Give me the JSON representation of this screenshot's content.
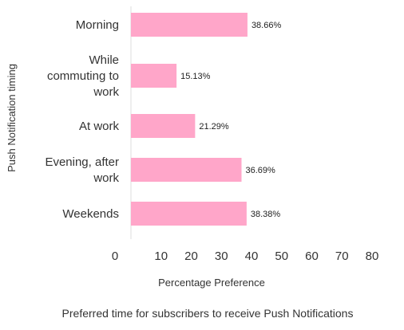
{
  "chart_data": {
    "type": "bar",
    "orientation": "horizontal",
    "title": "Preferred time for subscribers to receive Push Notifications",
    "xlabel": "Percentage Preference",
    "ylabel": "Push Notification timing",
    "categories": [
      [
        "Morning"
      ],
      [
        "While",
        "commuting to",
        "work"
      ],
      [
        "At work"
      ],
      [
        "Evening, after",
        "work"
      ],
      [
        "Weekends"
      ]
    ],
    "values": [
      38.66,
      15.13,
      21.29,
      36.69,
      38.38
    ],
    "value_labels": [
      "38.66%",
      "15.13%",
      "21.29%",
      "36.69%",
      "38.38%"
    ],
    "xlim": [
      0,
      80
    ],
    "xticks": [
      "0",
      "10",
      "20",
      "30",
      "40",
      "50",
      "60",
      "70",
      "80"
    ],
    "grid": false,
    "legend": "none",
    "bar_color": "#ffa6c9",
    "axis_color": "#dddddd"
  }
}
